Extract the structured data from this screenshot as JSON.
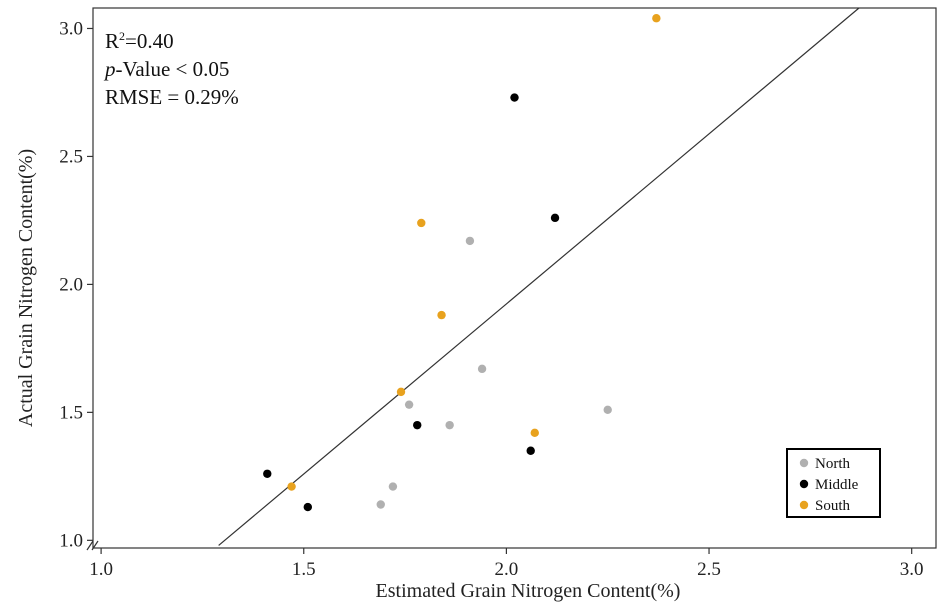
{
  "chart_data": {
    "type": "scatter",
    "xlabel": "Estimated Grain Nitrogen Content(%)",
    "ylabel": "Actual Grain Nitrogen Content(%)",
    "xlim": [
      0.98,
      3.06
    ],
    "ylim": [
      0.97,
      3.08
    ],
    "x_ticks": [
      "1.0",
      "1.5",
      "2.0",
      "2.5",
      "3.0"
    ],
    "y_ticks": [
      "1.0",
      "1.5",
      "2.0",
      "2.5",
      "3.0"
    ],
    "x_tick_values": [
      1.0,
      1.5,
      2.0,
      2.5,
      3.0
    ],
    "y_tick_values": [
      1.0,
      1.5,
      2.0,
      2.5,
      3.0
    ],
    "grid": false,
    "legend_position": "bottom-right",
    "stats": {
      "r2_prefix": "R",
      "r2_sup": "2",
      "r2_value": "=0.40",
      "p_italic": "p",
      "p_rest": "-Value < 0.05",
      "rmse": "RMSE = 0.29%"
    },
    "fit_line": {
      "x": [
        1.29,
        2.87
      ],
      "y": [
        0.98,
        3.08
      ]
    },
    "series": [
      {
        "name": "North",
        "color": "#b0b0b0",
        "points": [
          [
            1.69,
            1.14
          ],
          [
            1.72,
            1.21
          ],
          [
            1.76,
            1.53
          ],
          [
            1.86,
            1.45
          ],
          [
            1.91,
            2.17
          ],
          [
            1.94,
            1.67
          ],
          [
            2.25,
            1.51
          ]
        ]
      },
      {
        "name": "Middle",
        "color": "#000000",
        "points": [
          [
            1.41,
            1.26
          ],
          [
            1.51,
            1.13
          ],
          [
            1.78,
            1.45
          ],
          [
            2.02,
            2.73
          ],
          [
            2.06,
            1.35
          ],
          [
            2.12,
            2.26
          ]
        ]
      },
      {
        "name": "South",
        "color": "#e8a21e",
        "points": [
          [
            1.47,
            1.21
          ],
          [
            1.74,
            1.58
          ],
          [
            1.79,
            2.24
          ],
          [
            1.84,
            1.88
          ],
          [
            2.07,
            1.42
          ],
          [
            2.37,
            3.04
          ]
        ]
      }
    ]
  }
}
